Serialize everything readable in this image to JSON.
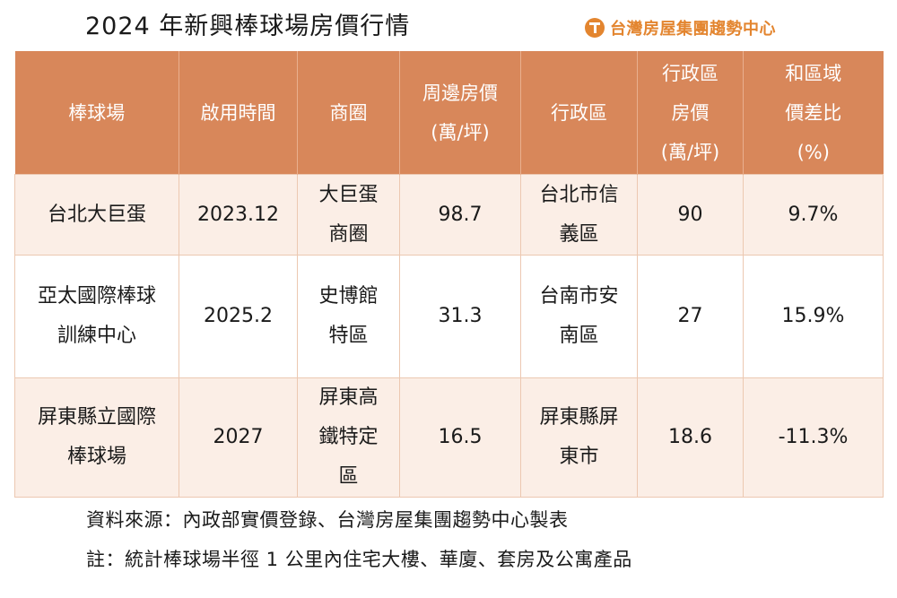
{
  "title": "2024 年新興棒球場房價行情",
  "brand": {
    "name": "台灣房屋集團趨勢中心",
    "color": "#e3852f"
  },
  "table": {
    "headers": [
      "棒球場",
      "啟用時間",
      "商圈",
      "周邊房價\n(萬/坪)",
      "行政區",
      "行政區\n房價\n(萬/坪)",
      "和區域\n價差比\n(%)"
    ],
    "rows": [
      {
        "stadium": "台北大巨蛋",
        "opening": "2023.12",
        "district": "大巨蛋\n商圈",
        "nearby_price": "98.7",
        "admin_area": "台北市信\n義區",
        "admin_price": "90",
        "diff_pct": "9.7%"
      },
      {
        "stadium": "亞太國際棒球\n訓練中心",
        "opening": "2025.2",
        "district": "史博館\n特區",
        "nearby_price": "31.3",
        "admin_area": "台南市安\n南區",
        "admin_price": "27",
        "diff_pct": "15.9%"
      },
      {
        "stadium": "屏東縣立國際\n棒球場",
        "opening": "2027",
        "district": "屏東高\n鐵特定\n區",
        "nearby_price": "16.5",
        "admin_area": "屏東縣屏\n東市",
        "admin_price": "18.6",
        "diff_pct": "-11.3%"
      }
    ],
    "header_color": "#d8875a",
    "stripe_color": "#fbeee6"
  },
  "footer": {
    "source": "資料來源：內政部實價登錄、台灣房屋集團趨勢中心製表",
    "note": "註：統計棒球場半徑 1 公里內住宅大樓、華廈、套房及公寓產品"
  }
}
